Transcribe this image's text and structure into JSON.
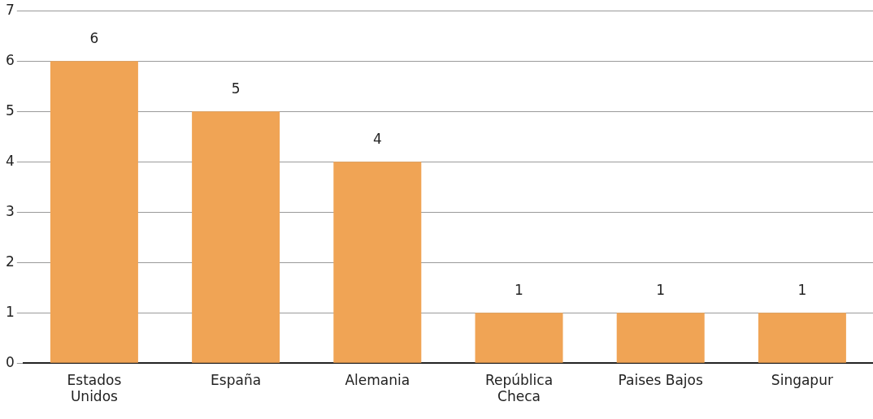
{
  "chart_data": {
    "type": "bar",
    "categories": [
      "Estados Unidos",
      "España",
      "Alemania",
      "República Checa",
      "Paises Bajos",
      "Singapur"
    ],
    "values": [
      6,
      5,
      4,
      1,
      1,
      1
    ],
    "color": "#f0a455",
    "ylim": [
      0,
      7
    ],
    "yticks": [
      0,
      1,
      2,
      3,
      4,
      5,
      6,
      7
    ],
    "grid": "y",
    "legend": false,
    "data_labels": true
  }
}
